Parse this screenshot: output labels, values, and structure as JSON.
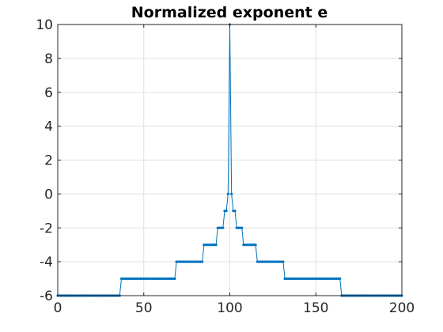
{
  "chart_data": {
    "type": "line",
    "title": "Normalized exponent e",
    "xlabel": "",
    "ylabel": "",
    "xlim": [
      0,
      200
    ],
    "ylim": [
      -6,
      10
    ],
    "xticks": [
      0,
      50,
      100,
      150,
      200
    ],
    "yticks": [
      -6,
      -4,
      -2,
      0,
      2,
      4,
      6,
      8,
      10
    ],
    "grid": true,
    "marker": "dot",
    "series_color": "#0072BD",
    "levels": [
      {
        "x_start": 0,
        "x_end": 36,
        "y": -6
      },
      {
        "x_start": 37,
        "x_end": 68,
        "y": -5
      },
      {
        "x_start": 69,
        "x_end": 84,
        "y": -4
      },
      {
        "x_start": 85,
        "x_end": 92,
        "y": -3
      },
      {
        "x_start": 93,
        "x_end": 96,
        "y": -2
      },
      {
        "x_start": 97,
        "x_end": 98,
        "y": -1
      },
      {
        "x_start": 99,
        "x_end": 99,
        "y": 0
      },
      {
        "x_start": 100,
        "x_end": 100,
        "y": 10
      },
      {
        "x_start": 101,
        "x_end": 101,
        "y": 0
      },
      {
        "x_start": 102,
        "x_end": 103,
        "y": -1
      },
      {
        "x_start": 104,
        "x_end": 107,
        "y": -2
      },
      {
        "x_start": 108,
        "x_end": 115,
        "y": -3
      },
      {
        "x_start": 116,
        "x_end": 131,
        "y": -4
      },
      {
        "x_start": 132,
        "x_end": 164,
        "y": -5
      },
      {
        "x_start": 165,
        "x_end": 200,
        "y": -6
      }
    ]
  }
}
